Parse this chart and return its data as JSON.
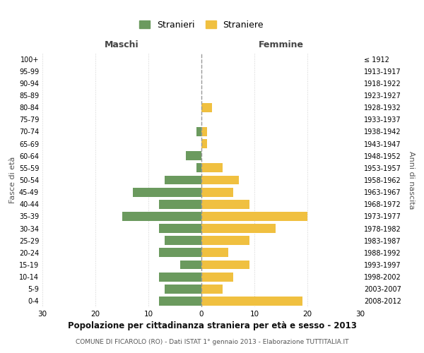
{
  "age_groups": [
    "0-4",
    "5-9",
    "10-14",
    "15-19",
    "20-24",
    "25-29",
    "30-34",
    "35-39",
    "40-44",
    "45-49",
    "50-54",
    "55-59",
    "60-64",
    "65-69",
    "70-74",
    "75-79",
    "80-84",
    "85-89",
    "90-94",
    "95-99",
    "100+"
  ],
  "birth_years": [
    "2008-2012",
    "2003-2007",
    "1998-2002",
    "1993-1997",
    "1988-1992",
    "1983-1987",
    "1978-1982",
    "1973-1977",
    "1968-1972",
    "1963-1967",
    "1958-1962",
    "1953-1957",
    "1948-1952",
    "1943-1947",
    "1938-1942",
    "1933-1937",
    "1928-1932",
    "1923-1927",
    "1918-1922",
    "1913-1917",
    "≤ 1912"
  ],
  "maschi": [
    8,
    7,
    8,
    4,
    8,
    7,
    8,
    15,
    8,
    13,
    7,
    1,
    3,
    0,
    1,
    0,
    0,
    0,
    0,
    0,
    0
  ],
  "femmine": [
    19,
    4,
    6,
    9,
    5,
    9,
    14,
    20,
    9,
    6,
    7,
    4,
    0,
    1,
    1,
    0,
    2,
    0,
    0,
    0,
    0
  ],
  "male_color": "#6b9a5e",
  "female_color": "#f0c040",
  "background_color": "#ffffff",
  "grid_color": "#d0d0d0",
  "dashed_line_color": "#999999",
  "title": "Popolazione per cittadinanza straniera per età e sesso - 2013",
  "subtitle": "COMUNE DI FICAROLO (RO) - Dati ISTAT 1° gennaio 2013 - Elaborazione TUTTITALIA.IT",
  "xlabel_left": "Maschi",
  "xlabel_right": "Femmine",
  "ylabel_left": "Fasce di età",
  "ylabel_right": "Anni di nascita",
  "legend_male": "Stranieri",
  "legend_female": "Straniere",
  "xlim": 30
}
